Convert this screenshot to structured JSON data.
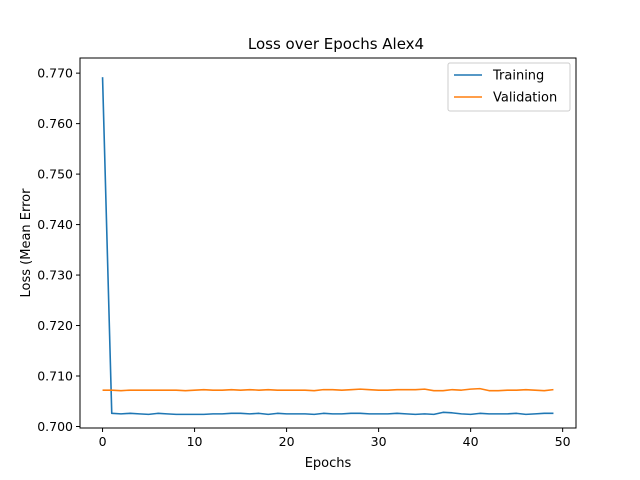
{
  "chart_data": {
    "type": "line",
    "title": "Loss over Epochs Alex4",
    "xlabel": "Epochs",
    "ylabel": "Loss (Mean Error",
    "xlim": [
      -2.45,
      51.45
    ],
    "ylim": [
      0.6997,
      0.773
    ],
    "xticks": [
      0,
      10,
      20,
      30,
      40,
      50
    ],
    "yticks": [
      0.7,
      0.71,
      0.72,
      0.73,
      0.74,
      0.75,
      0.76,
      0.77
    ],
    "ytick_labels": [
      "0.700",
      "0.710",
      "0.720",
      "0.730",
      "0.740",
      "0.750",
      "0.760",
      "0.770"
    ],
    "xtick_labels": [
      "0",
      "10",
      "20",
      "30",
      "40",
      "50"
    ],
    "grid": false,
    "legend_position": "top-right",
    "x": [
      0,
      1,
      2,
      3,
      4,
      5,
      6,
      7,
      8,
      9,
      10,
      11,
      12,
      13,
      14,
      15,
      16,
      17,
      18,
      19,
      20,
      21,
      22,
      23,
      24,
      25,
      26,
      27,
      28,
      29,
      30,
      31,
      32,
      33,
      34,
      35,
      36,
      37,
      38,
      39,
      40,
      41,
      42,
      43,
      44,
      45,
      46,
      47,
      48,
      49
    ],
    "series": [
      {
        "name": "Training",
        "color": "#1f77b4",
        "values": [
          0.7692,
          0.7026,
          0.7025,
          0.7026,
          0.7025,
          0.7024,
          0.7026,
          0.7025,
          0.7024,
          0.7024,
          0.7024,
          0.7024,
          0.7025,
          0.7025,
          0.7026,
          0.7026,
          0.7025,
          0.7026,
          0.7024,
          0.7026,
          0.7025,
          0.7025,
          0.7025,
          0.7024,
          0.7026,
          0.7025,
          0.7025,
          0.7026,
          0.7026,
          0.7025,
          0.7025,
          0.7025,
          0.7026,
          0.7025,
          0.7024,
          0.7025,
          0.7024,
          0.7028,
          0.7027,
          0.7025,
          0.7024,
          0.7026,
          0.7025,
          0.7025,
          0.7025,
          0.7026,
          0.7024,
          0.7025,
          0.7026,
          0.7026
        ]
      },
      {
        "name": "Validation",
        "color": "#ff7f0e",
        "values": [
          0.7072,
          0.7072,
          0.7071,
          0.7072,
          0.7072,
          0.7072,
          0.7072,
          0.7072,
          0.7072,
          0.7071,
          0.7072,
          0.7073,
          0.7072,
          0.7072,
          0.7073,
          0.7072,
          0.7073,
          0.7072,
          0.7073,
          0.7072,
          0.7072,
          0.7072,
          0.7072,
          0.7071,
          0.7073,
          0.7073,
          0.7072,
          0.7073,
          0.7074,
          0.7073,
          0.7072,
          0.7072,
          0.7073,
          0.7073,
          0.7073,
          0.7074,
          0.7071,
          0.7071,
          0.7073,
          0.7072,
          0.7074,
          0.7075,
          0.7071,
          0.7071,
          0.7072,
          0.7072,
          0.7073,
          0.7072,
          0.7071,
          0.7073
        ]
      }
    ]
  }
}
